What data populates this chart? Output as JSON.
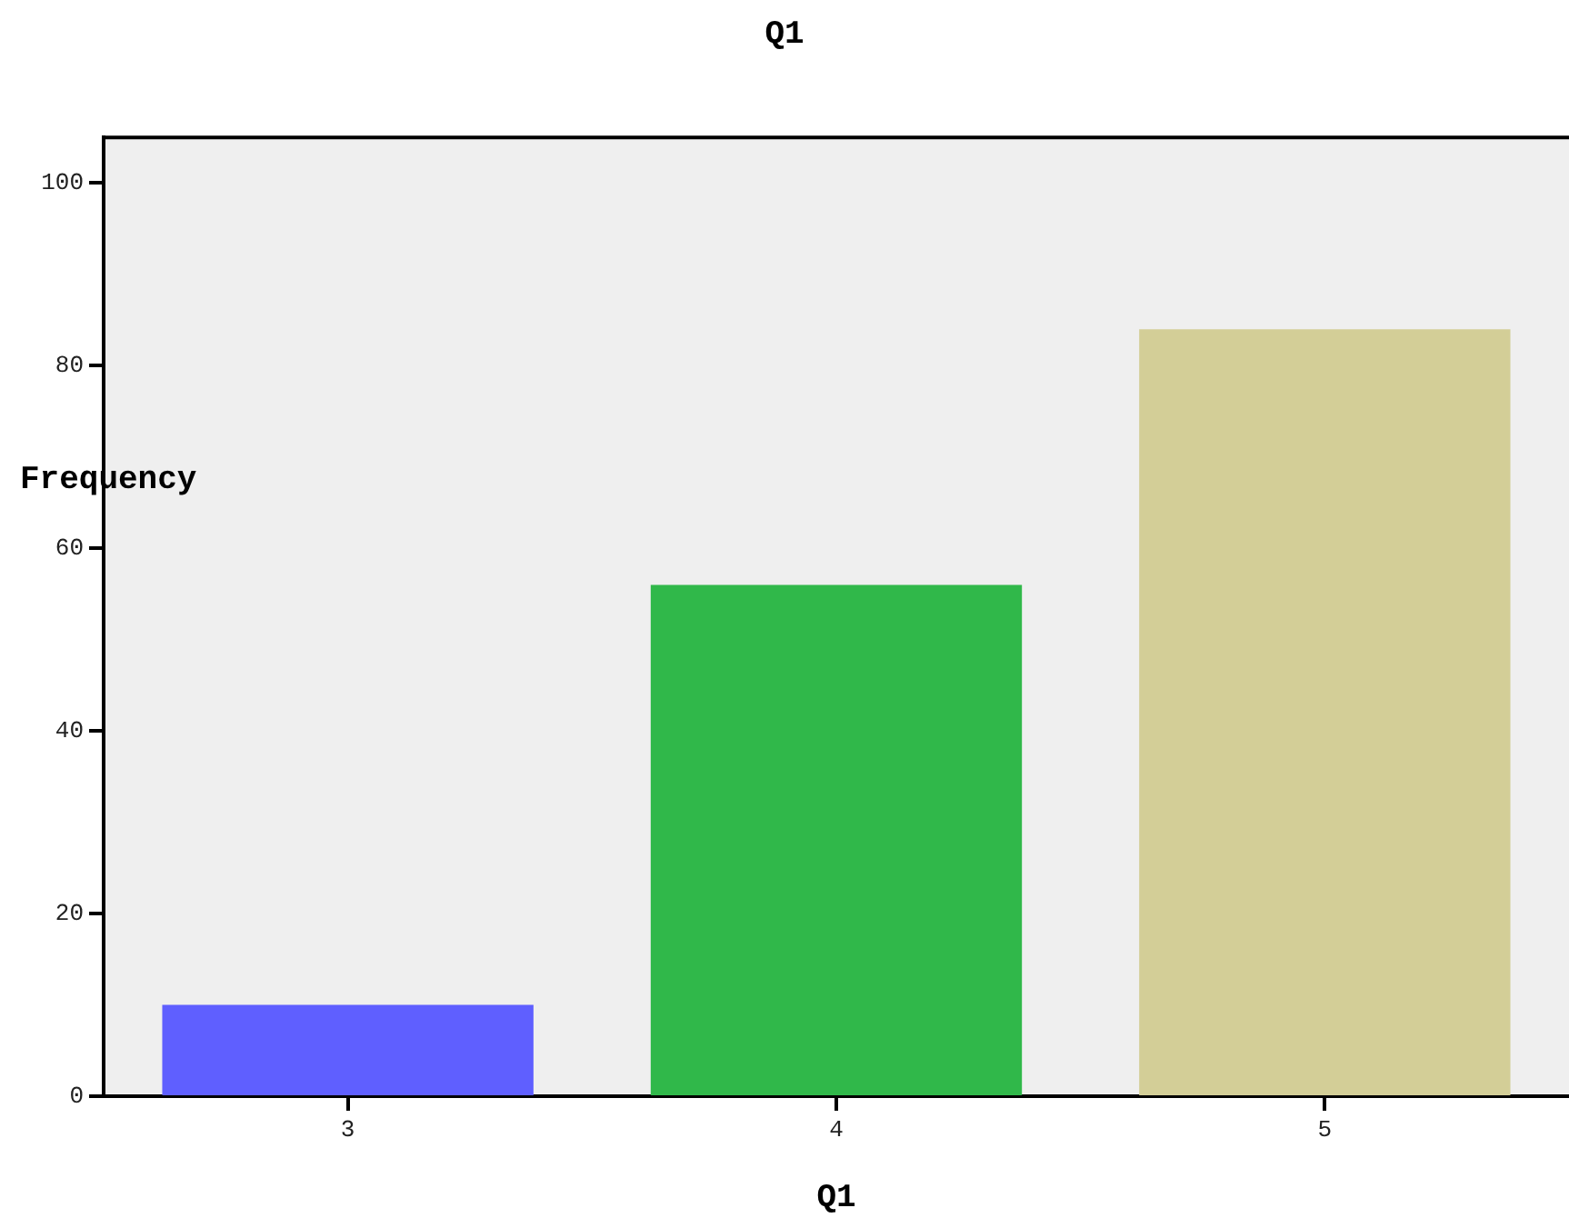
{
  "chart_data": {
    "type": "bar",
    "title": "Q1",
    "xlabel": "Q1",
    "ylabel": "Frequency",
    "categories": [
      "3",
      "4",
      "5"
    ],
    "values": [
      10,
      56,
      84
    ],
    "colors": [
      "#5f5fff",
      "#30b84a",
      "#d3ce97"
    ],
    "ylim": [
      0,
      105
    ],
    "yticks": [
      0,
      20,
      40,
      60,
      80,
      100
    ],
    "grid": false,
    "legend": false
  }
}
